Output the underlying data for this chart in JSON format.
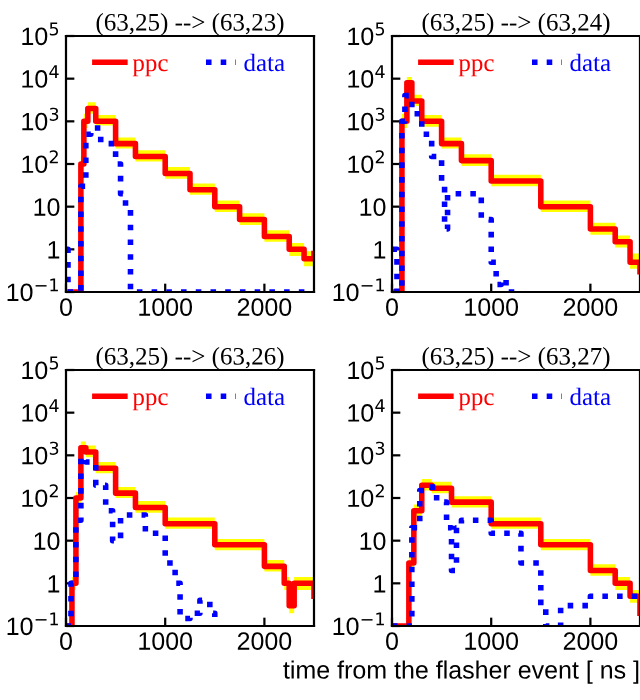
{
  "chart_data": [
    {
      "type": "step",
      "title": "(63,25) --> (63,23)",
      "xlim": [
        0,
        2500
      ],
      "xticks": [
        0,
        1000,
        2000
      ],
      "ylim": [
        0.1,
        100000
      ],
      "log": true,
      "legend": "top",
      "yticks": [
        {
          "value": 0.1,
          "label": "10$^{−1}$"
        },
        1,
        10,
        {
          "value": 100,
          "label": "10$^{2}$"
        },
        {
          "value": 1000,
          "label": "10$^{3}$"
        },
        {
          "value": 10000,
          "label": "10$^{4}$"
        },
        {
          "value": 100000,
          "label": "10$^{5}$"
        }
      ],
      "series": [
        {
          "name": "ppc",
          "color": "#ff0000",
          "line_style": "solid",
          "x": [
            0,
            150,
            180,
            220,
            300,
            500,
            700,
            1000,
            1250,
            1500,
            1750,
            2000,
            2250,
            2400,
            2500
          ],
          "values": [
            0.1,
            100,
            1000,
            2000,
            1000,
            300,
            150,
            60,
            25,
            10,
            5,
            2,
            1,
            0.6,
            0.8
          ],
          "lower": [
            0.1,
            70,
            700,
            1500,
            800,
            230,
            115,
            45,
            19,
            7.5,
            3.7,
            1.5,
            0.7,
            0.4,
            0.6
          ],
          "upper": [
            0.1,
            150,
            1500,
            2800,
            1400,
            420,
            210,
            85,
            35,
            14,
            7,
            2.8,
            1.4,
            0.9,
            1.1
          ]
        },
        {
          "name": "data",
          "color": "#0000ff",
          "line_style": "dotted",
          "x": [
            0,
            20,
            150,
            200,
            250,
            350,
            500,
            550,
            600,
            650,
            2500
          ],
          "values": [
            1,
            0.1,
            30,
            500,
            700,
            300,
            100,
            20,
            10,
            0.1,
            0.1
          ]
        }
      ]
    },
    {
      "type": "step",
      "title": "(63,25) --> (63,24)",
      "xlim": [
        0,
        2500
      ],
      "xticks": [
        0,
        1000,
        2000
      ],
      "ylim": [
        0.1,
        100000
      ],
      "log": true,
      "legend": "top",
      "yticks": [
        {
          "value": 0.1,
          "label": "10$^{−1}$"
        },
        1,
        10,
        {
          "value": 100,
          "label": "10$^{2}$"
        },
        {
          "value": 1000,
          "label": "10$^{3}$"
        },
        {
          "value": 10000,
          "label": "10$^{4}$"
        },
        {
          "value": 100000,
          "label": "10$^{5}$"
        }
      ],
      "series": [
        {
          "name": "ppc",
          "color": "#ff0000",
          "line_style": "solid",
          "x": [
            0,
            70,
            100,
            150,
            200,
            300,
            500,
            700,
            1000,
            1500,
            2000,
            2250,
            2400,
            2500
          ],
          "values": [
            0.1,
            0.1,
            1000,
            8000,
            3000,
            1000,
            300,
            120,
            40,
            10,
            3,
            1.5,
            0.5,
            0.3
          ],
          "lower": [
            0.1,
            0.1,
            700,
            6000,
            2300,
            750,
            230,
            90,
            30,
            7.5,
            2.2,
            1.1,
            0.35,
            0.2
          ],
          "upper": [
            0.1,
            0.1,
            1500,
            11000,
            4200,
            1400,
            420,
            170,
            56,
            14,
            4.2,
            2.1,
            0.8,
            0.5
          ]
        },
        {
          "name": "data",
          "color": "#0000ff",
          "line_style": "dotted",
          "x": [
            0,
            50,
            100,
            130,
            200,
            300,
            400,
            500,
            530,
            560,
            700,
            800,
            900,
            1000,
            1050,
            1100,
            1150,
            1300
          ],
          "values": [
            1,
            0.1,
            1000,
            4000,
            1500,
            500,
            150,
            30,
            3,
            20,
            20,
            20,
            5,
            0.5,
            0.15,
            0.2,
            0.1,
            0.1
          ]
        }
      ]
    },
    {
      "type": "step",
      "title": "(63,25) --> (63,26)",
      "xlim": [
        0,
        2500
      ],
      "xticks": [
        0,
        1000,
        2000
      ],
      "ylim": [
        0.1,
        100000
      ],
      "log": true,
      "legend": "top",
      "yticks": [
        {
          "value": 0.1,
          "label": "10$^{−1}$"
        },
        1,
        10,
        {
          "value": 100,
          "label": "10$^{2}$"
        },
        {
          "value": 1000,
          "label": "10$^{3}$"
        },
        {
          "value": 10000,
          "label": "10$^{4}$"
        },
        {
          "value": 100000,
          "label": "10$^{5}$"
        }
      ],
      "series": [
        {
          "name": "ppc",
          "color": "#ff0000",
          "line_style": "solid",
          "x": [
            0,
            60,
            100,
            150,
            200,
            300,
            500,
            700,
            1000,
            1500,
            2000,
            2200,
            2250,
            2300,
            2500
          ],
          "values": [
            0.1,
            1,
            100,
            1500,
            1200,
            500,
            130,
            60,
            25,
            8,
            2.5,
            1,
            0.3,
            1,
            0.5
          ],
          "lower": [
            0.1,
            0.7,
            70,
            1100,
            900,
            380,
            100,
            45,
            19,
            6,
            1.9,
            0.7,
            0.2,
            0.7,
            0.35
          ],
          "upper": [
            0.1,
            1.4,
            140,
            2100,
            1700,
            700,
            180,
            85,
            35,
            11,
            3.5,
            1.4,
            0.45,
            1.4,
            0.7
          ]
        },
        {
          "name": "data",
          "color": "#0000ff",
          "line_style": "dotted",
          "x": [
            0,
            50,
            100,
            150,
            200,
            300,
            400,
            470,
            550,
            650,
            800,
            1000,
            1100,
            1150,
            1250,
            1350,
            1450,
            1500
          ],
          "values": [
            0.1,
            1,
            30,
            900,
            700,
            200,
            50,
            10,
            40,
            40,
            15,
            3,
            1,
            0.15,
            0.2,
            0.4,
            0.2,
            0.1
          ]
        }
      ]
    },
    {
      "type": "step",
      "title": "(63,25) --> (63,27)",
      "xlabel": "time from the flasher event [ ns ]",
      "xlim": [
        0,
        2500
      ],
      "xticks": [
        0,
        1000,
        2000
      ],
      "ylim": [
        0.1,
        100000
      ],
      "log": true,
      "legend": "top",
      "yticks": [
        {
          "value": 0.1,
          "label": "10$^{−1}$"
        },
        1,
        10,
        {
          "value": 100,
          "label": "10$^{2}$"
        },
        {
          "value": 1000,
          "label": "10$^{3}$"
        },
        {
          "value": 10000,
          "label": "10$^{4}$"
        },
        {
          "value": 100000,
          "label": "10$^{5}$"
        }
      ],
      "series": [
        {
          "name": "ppc",
          "color": "#ff0000",
          "line_style": "solid",
          "x": [
            0,
            150,
            170,
            220,
            300,
            400,
            600,
            1000,
            1500,
            2000,
            2250,
            2400,
            2500
          ],
          "values": [
            0.1,
            0.1,
            3,
            50,
            200,
            170,
            80,
            25,
            8,
            2,
            1,
            0.5,
            0.2
          ],
          "lower": [
            0.1,
            0.1,
            2,
            37,
            150,
            130,
            60,
            19,
            6,
            1.5,
            0.7,
            0.35,
            0.15
          ],
          "upper": [
            0.1,
            0.1,
            4.2,
            70,
            280,
            240,
            110,
            35,
            11,
            2.8,
            1.4,
            0.7,
            0.3
          ]
        },
        {
          "name": "data",
          "color": "#0000ff",
          "line_style": "dotted",
          "x": [
            0,
            150,
            200,
            280,
            350,
            450,
            550,
            600,
            650,
            700,
            1000,
            1300,
            1500,
            1550,
            1700,
            2000,
            2300,
            2500
          ],
          "values": [
            0.1,
            0.1,
            20,
            150,
            180,
            80,
            20,
            2,
            20,
            30,
            15,
            3,
            0.3,
            0.1,
            0.3,
            0.5,
            0.5,
            0.5
          ]
        }
      ]
    }
  ]
}
